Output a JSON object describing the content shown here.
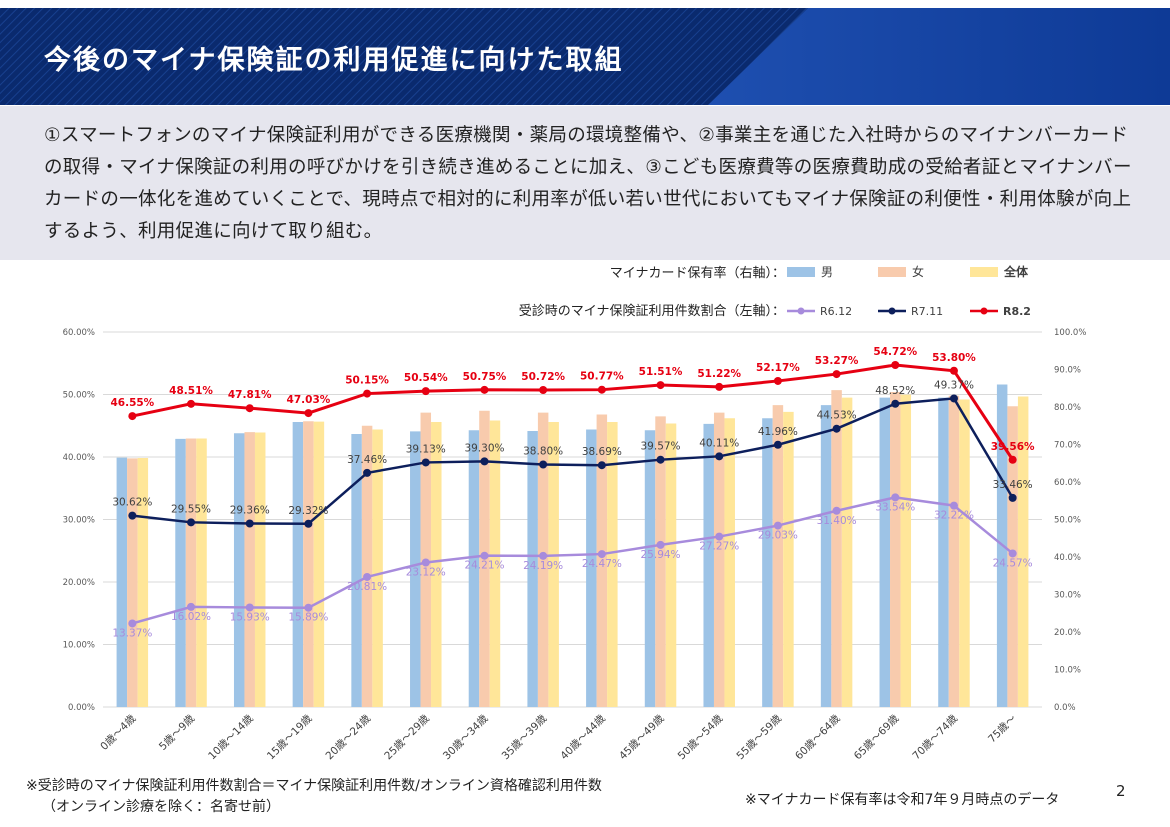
{
  "header": {
    "title": "今後のマイナ保険証の利用促進に向けた取組",
    "colors": {
      "dark": "#0a2a6e",
      "light": "#1f55b8"
    }
  },
  "intro": {
    "text": "①スマートフォンのマイナ保険証利用ができる医療機関・薬局の環境整備や、②事業主を通じた入社時からのマイナンバーカードの取得・マイナ保険証の利用の呼びかけを引き続き進めることに加え、③こども医療費等の医療費助成の受給者証とマイナンバーカードの一体化を進めていくことで、現時点で相対的に利用率が低い若い世代においてもマイナ保険証の利便性・利用体験が向上するよう、利用促進に向けて取り組む。"
  },
  "chart_data": {
    "type": "bar+line",
    "categories": [
      "0歳～4歳",
      "5歳～9歳",
      "10歳～14歳",
      "15歳～19歳",
      "20歳～24歳",
      "25歳～29歳",
      "30歳～34歳",
      "35歳～39歳",
      "40歳～44歳",
      "45歳～49歳",
      "50歳～54歳",
      "55歳～59歳",
      "60歳～64歳",
      "65歳～69歳",
      "70歳～74歳",
      "75歳～"
    ],
    "bar_legend_title": "マイナカード保有率（右軸）：",
    "line_legend_title": "受診時のマイナ保険証利用件数割合（左軸）：",
    "bar_series": [
      {
        "name": "男",
        "color": "#9dc3e6",
        "values": [
          66.5,
          71.5,
          73.0,
          76.0,
          72.8,
          73.5,
          73.8,
          73.6,
          74.0,
          73.8,
          75.5,
          77.0,
          80.5,
          82.5,
          82.5,
          86.0
        ]
      },
      {
        "name": "女",
        "color": "#f8cbad",
        "values": [
          66.3,
          71.6,
          73.3,
          76.2,
          75.0,
          78.5,
          79.0,
          78.5,
          78.0,
          77.5,
          78.5,
          80.5,
          84.5,
          84.0,
          83.0,
          80.2
        ]
      },
      {
        "name": "全体",
        "color": "#ffe699",
        "values": [
          66.4,
          71.6,
          73.2,
          76.1,
          74.0,
          76.0,
          76.4,
          76.0,
          76.0,
          75.6,
          77.0,
          78.7,
          82.5,
          83.3,
          82.0,
          82.8
        ]
      }
    ],
    "line_series": [
      {
        "name": "R6.12",
        "color": "#a78bdc",
        "values": [
          13.37,
          16.02,
          15.93,
          15.89,
          20.81,
          23.12,
          24.21,
          24.19,
          24.47,
          25.94,
          27.27,
          29.03,
          31.4,
          33.54,
          32.22,
          24.57
        ],
        "labels": [
          "13.37%",
          "16.02%",
          "15.93%",
          "15.89%",
          "20.81%",
          "23.12%",
          "24.21%",
          "24.19%",
          "24.47%",
          "25.94%",
          "27.27%",
          "29.03%",
          "31.40%",
          "33.54%",
          "32.22%",
          "24.57%"
        ]
      },
      {
        "name": "R7.11",
        "color": "#0d1f5c",
        "values": [
          30.62,
          29.55,
          29.36,
          29.32,
          37.46,
          39.13,
          39.3,
          38.8,
          38.69,
          39.57,
          40.11,
          41.96,
          44.53,
          48.52,
          49.37,
          33.46
        ],
        "labels": [
          "30.62%",
          "29.55%",
          "29.36%",
          "29.32%",
          "37.46%",
          "39.13%",
          "39.30%",
          "38.80%",
          "38.69%",
          "39.57%",
          "40.11%",
          "41.96%",
          "44.53%",
          "48.52%",
          "49.37%",
          "33.46%"
        ]
      },
      {
        "name": "R8.2",
        "color": "#e60012",
        "values": [
          46.55,
          48.51,
          47.81,
          47.03,
          50.15,
          50.54,
          50.75,
          50.72,
          50.77,
          51.51,
          51.22,
          52.17,
          53.27,
          54.72,
          53.8,
          39.56
        ],
        "labels": [
          "46.55%",
          "48.51%",
          "47.81%",
          "47.03%",
          "50.15%",
          "50.54%",
          "50.75%",
          "50.72%",
          "50.77%",
          "51.51%",
          "51.22%",
          "52.17%",
          "53.27%",
          "54.72%",
          "53.80%",
          "39.56%"
        ]
      }
    ],
    "y_left": {
      "min": 0,
      "max": 60,
      "step": 10,
      "ticks": [
        "0.00%",
        "10.00%",
        "20.00%",
        "30.00%",
        "40.00%",
        "50.00%",
        "60.00%"
      ]
    },
    "y_right": {
      "min": 0,
      "max": 100,
      "step": 10,
      "ticks": [
        "0.0%",
        "10.0%",
        "20.0%",
        "30.0%",
        "40.0%",
        "50.0%",
        "60.0%",
        "70.0%",
        "80.0%",
        "90.0%",
        "100.0%"
      ]
    },
    "grid": true,
    "legend_position": "top-right"
  },
  "footnotes": {
    "left_line1": "※受診時のマイナ保険証利用件数割合＝マイナ保険証利用件数/オンライン資格確認利用件数",
    "left_line2": "（オンライン診療を除く：名寄せ前）",
    "right": "※マイナカード保有率は令和7年９月時点のデータ"
  },
  "page_number": "2"
}
